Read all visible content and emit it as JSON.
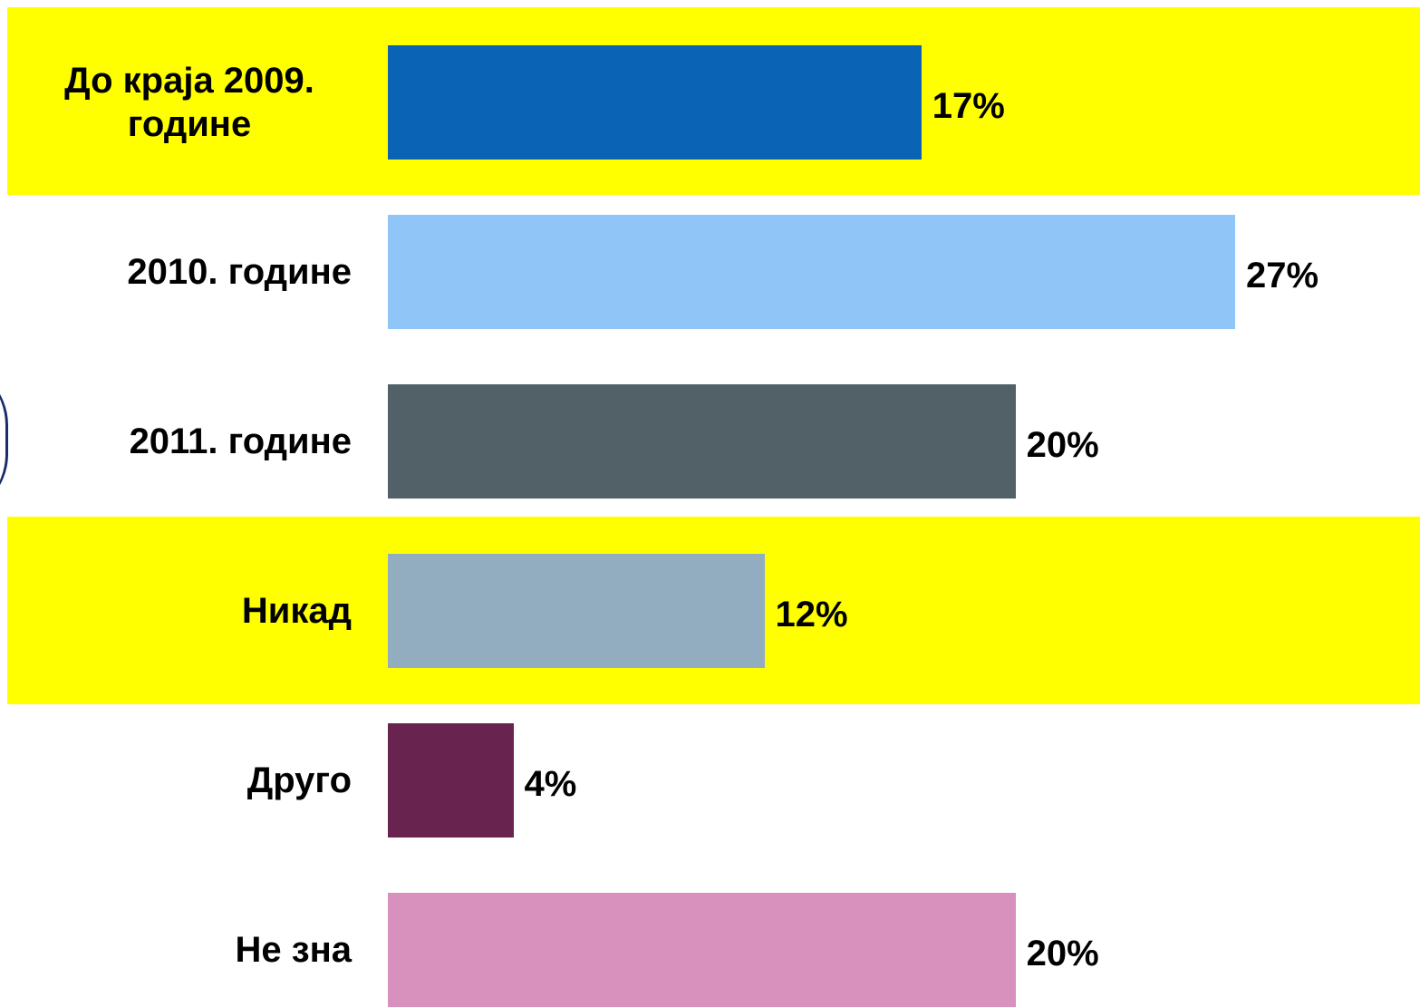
{
  "chart_data": {
    "type": "barh",
    "categories": [
      "До краја 2009. године",
      "2010. године",
      "2011. године",
      "Никад",
      "Друго",
      "Не зна"
    ],
    "values": [
      17,
      27,
      20,
      12,
      4,
      20
    ],
    "value_labels": [
      "17%",
      "27%",
      "20%",
      "12%",
      "4%",
      "20%"
    ],
    "colors": [
      "#0a63b5",
      "#90c5f8",
      "#526168",
      "#92adbf",
      "#69234f",
      "#d890bd"
    ]
  }
}
